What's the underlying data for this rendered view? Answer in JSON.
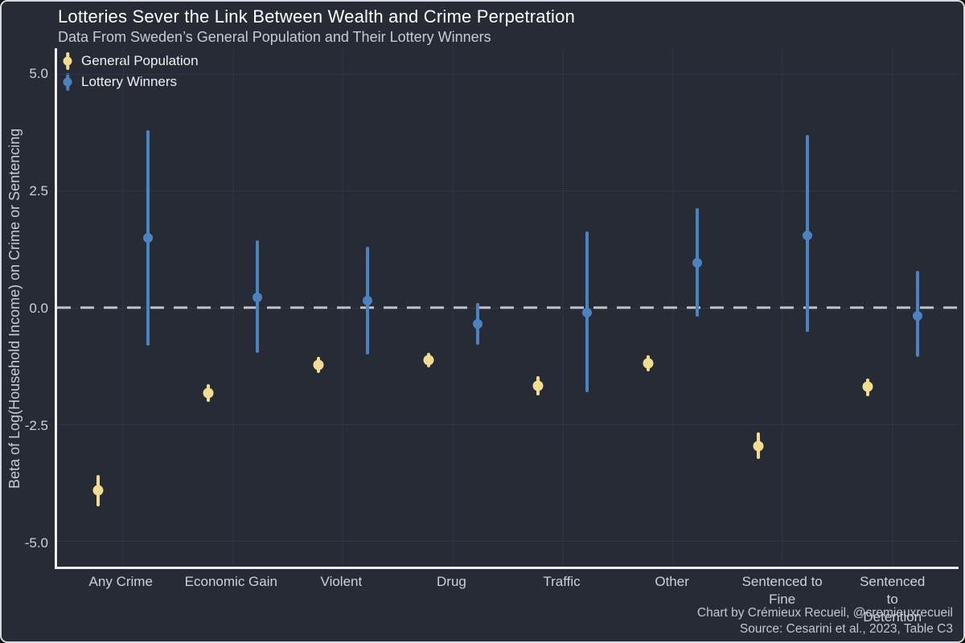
{
  "caption": {
    "line1": "Chart by Crémieux Recueil, @cremieuxrecueil",
    "line2": "Source: Cesarini et al., 2023, Table C3"
  },
  "colors": {
    "background": "#262b36",
    "frame_border": "#d6d9de",
    "axis_line": "#eef0f3",
    "gridline": "#303645",
    "zero_line": "#bcc2ca",
    "title_text": "#ffffff",
    "muted_text": "#c7ccd4",
    "general_population": "#f1dd8d",
    "lottery_winners": "#4a83c2"
  },
  "chart_data": {
    "type": "scatter",
    "subtype": "point estimates with vertical 95% CI error bars, dodged by group",
    "title": "Lotteries Sever the Link Between Wealth and Crime Perpetration",
    "subtitle": "Data From Sweden’s General Population and Their Lottery Winners",
    "xlabel": "",
    "ylabel": "Beta of Log(Household Income) on Crime or Sentencing",
    "categories": [
      "Any Crime",
      "Economic Gain",
      "Violent",
      "Drug",
      "Traffic",
      "Other",
      "Sentenced to Fine",
      "Sentenced to Detention"
    ],
    "xtick_labels_display": [
      "Any Crime",
      "Economic Gain",
      "Violent",
      "Drug",
      "Traffic",
      "Other",
      "Sentenced to\nFine",
      "Sentenced to\nDetention"
    ],
    "series": [
      {
        "name": "General Population",
        "color": "#f1dd8d",
        "values": [
          -3.92,
          -1.83,
          -1.23,
          -1.12,
          -1.67,
          -1.19,
          -2.97,
          -1.7
        ],
        "ci_low": [
          -4.26,
          -2.03,
          -1.4,
          -1.29,
          -1.88,
          -1.36,
          -3.25,
          -1.9
        ],
        "ci_high": [
          -3.58,
          -1.64,
          -1.06,
          -0.98,
          -1.47,
          -1.02,
          -2.67,
          -1.52
        ]
      },
      {
        "name": "Lottery Winners",
        "color": "#4a83c2",
        "values": [
          1.49,
          0.22,
          0.14,
          -0.35,
          -0.11,
          0.96,
          1.54,
          -0.18
        ],
        "ci_low": [
          -0.82,
          -0.97,
          -1.0,
          -0.8,
          -1.82,
          -0.19,
          -0.53,
          -1.06
        ],
        "ci_high": [
          3.79,
          1.43,
          1.3,
          0.1,
          1.62,
          2.12,
          3.69,
          0.78
        ]
      }
    ],
    "yticks": [
      5.0,
      2.5,
      0.0,
      -2.5,
      -5.0
    ],
    "ytick_labels": [
      "5.0",
      "2.5",
      "0.0",
      "-2.5",
      "-5.0"
    ],
    "ylim": [
      -5.55,
      5.55
    ],
    "zero_reference_line": {
      "value": 0,
      "style": "dashed",
      "color": "#bcc2ca"
    },
    "grid": "subtle major gridlines, horizontal at ticks and vertical at category centers",
    "legend_position": "top-left inside plot"
  }
}
